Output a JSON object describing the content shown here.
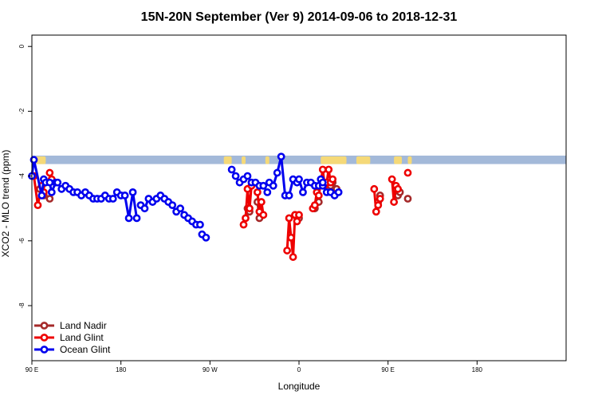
{
  "chart_data": {
    "type": "line",
    "title": "15N-20N September (Ver 9)   2014-09-06 to 2018-12-31",
    "xlabel": "Longitude",
    "ylabel": "XCO2 - MLO trend (ppm)",
    "xlim": [
      -90,
      180
    ],
    "ylim": [
      -9.7,
      0.35
    ],
    "xticks": [
      {
        "value": -90,
        "label": "90 E"
      },
      {
        "value": -45,
        "label": "180"
      },
      {
        "value": 0,
        "label": "90 W"
      },
      {
        "value": 45,
        "label": "0"
      },
      {
        "value": 90,
        "label": "90 E"
      },
      {
        "value": 135,
        "label": "180"
      }
    ],
    "yticks": [
      {
        "value": 0,
        "label": "0"
      },
      {
        "value": -2,
        "label": "-2"
      },
      {
        "value": -4,
        "label": "-4"
      },
      {
        "value": -6,
        "label": "-6"
      },
      {
        "value": -8,
        "label": "-8"
      }
    ],
    "map_strip": {
      "y_range": [
        -3.63,
        -3.37
      ],
      "ocean_color": "#A3B9D9",
      "land_color": "#F5D978",
      "land_segments": [
        [
          -88,
          -83
        ],
        [
          7,
          11
        ],
        [
          16,
          18
        ],
        [
          28,
          30
        ],
        [
          56,
          69
        ],
        [
          74,
          81
        ],
        [
          93,
          97
        ],
        [
          100,
          102
        ]
      ]
    },
    "legend_position": "bottom-left",
    "series": [
      {
        "name": "Land Nadir",
        "color": "#A52A2A",
        "segments": [
          [
            [
              -86,
              -4.4
            ],
            [
              -84,
              -4.6
            ],
            [
              -81,
              -4.7
            ]
          ],
          [
            [
              19,
              -5.0
            ],
            [
              20,
              -5.1
            ]
          ],
          [
            [
              24,
              -4.8
            ],
            [
              25,
              -5.3
            ]
          ],
          [
            [
              43,
              -5.2
            ],
            [
              45,
              -5.3
            ]
          ],
          [
            [
              53,
              -5.0
            ],
            [
              55,
              -4.8
            ]
          ],
          [
            [
              59,
              -4.2
            ],
            [
              61,
              -4.3
            ],
            [
              62,
              -4.2
            ],
            [
              64,
              -4.4
            ]
          ],
          [
            [
              85,
              -4.8
            ],
            [
              86,
              -4.6
            ]
          ],
          [
            [
              95,
              -4.6
            ],
            [
              96,
              -4.5
            ]
          ],
          [
            [
              100,
              -4.7
            ]
          ]
        ]
      },
      {
        "name": "Land Glint",
        "color": "#EE0000",
        "segments": [
          [
            [
              -89,
              -4.0
            ],
            [
              -87,
              -4.9
            ],
            [
              -85,
              -4.3
            ],
            [
              -84,
              -4.5
            ]
          ],
          [
            [
              -81,
              -3.9
            ],
            [
              -80,
              -4.1
            ]
          ],
          [
            [
              17,
              -5.5
            ],
            [
              18,
              -5.3
            ],
            [
              19,
              -4.4
            ],
            [
              20,
              -5.0
            ],
            [
              21,
              -4.3
            ]
          ],
          [
            [
              24,
              -4.5
            ],
            [
              25,
              -5.1
            ],
            [
              26,
              -4.8
            ],
            [
              27,
              -5.2
            ]
          ],
          [
            [
              39,
              -6.3
            ],
            [
              40,
              -5.3
            ],
            [
              41,
              -5.9
            ],
            [
              42,
              -6.5
            ],
            [
              43,
              -5.2
            ],
            [
              44,
              -5.4
            ],
            [
              45,
              -5.2
            ]
          ],
          [
            [
              52,
              -5.0
            ],
            [
              53,
              -4.9
            ],
            [
              54,
              -4.5
            ],
            [
              55,
              -4.6
            ],
            [
              57,
              -3.8
            ],
            [
              58,
              -4.3
            ],
            [
              59,
              -4.2
            ],
            [
              60,
              -3.8
            ],
            [
              61,
              -4.2
            ],
            [
              62,
              -4.1
            ]
          ],
          [
            [
              83,
              -4.4
            ],
            [
              84,
              -5.1
            ],
            [
              85,
              -4.9
            ],
            [
              86,
              -4.7
            ]
          ],
          [
            [
              92,
              -4.1
            ],
            [
              93,
              -4.8
            ],
            [
              94,
              -4.3
            ],
            [
              95,
              -4.4
            ]
          ],
          [
            [
              100,
              -3.9
            ]
          ]
        ]
      },
      {
        "name": "Ocean Glint",
        "color": "#0000EE",
        "segments": [
          [
            [
              -90,
              -4.0
            ],
            [
              -89,
              -3.5
            ],
            [
              -85,
              -4.6
            ],
            [
              -84,
              -4.1
            ],
            [
              -83,
              -4.2
            ],
            [
              -81,
              -4.2
            ],
            [
              -80,
              -4.5
            ],
            [
              -78,
              -4.2
            ],
            [
              -77,
              -4.2
            ],
            [
              -75,
              -4.4
            ],
            [
              -73,
              -4.3
            ],
            [
              -71,
              -4.4
            ],
            [
              -69,
              -4.5
            ],
            [
              -67,
              -4.5
            ],
            [
              -65,
              -4.6
            ],
            [
              -63,
              -4.5
            ],
            [
              -61,
              -4.6
            ],
            [
              -59,
              -4.7
            ],
            [
              -57,
              -4.7
            ],
            [
              -55,
              -4.7
            ],
            [
              -53,
              -4.6
            ],
            [
              -51,
              -4.7
            ],
            [
              -49,
              -4.7
            ],
            [
              -47,
              -4.5
            ],
            [
              -45,
              -4.6
            ],
            [
              -43,
              -4.6
            ],
            [
              -41,
              -5.3
            ],
            [
              -39,
              -4.5
            ],
            [
              -37,
              -5.3
            ]
          ],
          [
            [
              -35,
              -4.9
            ],
            [
              -33,
              -5.0
            ],
            [
              -31,
              -4.7
            ],
            [
              -29,
              -4.8
            ],
            [
              -27,
              -4.7
            ],
            [
              -25,
              -4.6
            ],
            [
              -23,
              -4.7
            ],
            [
              -21,
              -4.8
            ],
            [
              -19,
              -4.9
            ],
            [
              -17,
              -5.1
            ],
            [
              -15,
              -5.0
            ],
            [
              -13,
              -5.2
            ],
            [
              -11,
              -5.3
            ],
            [
              -9,
              -5.4
            ],
            [
              -7,
              -5.5
            ],
            [
              -5,
              -5.5
            ]
          ],
          [
            [
              -4,
              -5.8
            ],
            [
              -2,
              -5.9
            ]
          ],
          [
            [
              11,
              -3.8
            ],
            [
              13,
              -4.0
            ],
            [
              15,
              -4.2
            ],
            [
              17,
              -4.1
            ],
            [
              19,
              -4.0
            ],
            [
              21,
              -4.2
            ],
            [
              23,
              -4.2
            ],
            [
              25,
              -4.3
            ],
            [
              27,
              -4.3
            ],
            [
              29,
              -4.5
            ]
          ],
          [
            [
              30,
              -4.2
            ],
            [
              32,
              -4.3
            ],
            [
              34,
              -3.9
            ],
            [
              36,
              -3.4
            ],
            [
              38,
              -4.6
            ],
            [
              40,
              -4.6
            ],
            [
              42,
              -4.1
            ],
            [
              44,
              -4.2
            ]
          ],
          [
            [
              45,
              -4.1
            ],
            [
              47,
              -4.5
            ],
            [
              49,
              -4.2
            ],
            [
              51,
              -4.2
            ],
            [
              53,
              -4.3
            ],
            [
              55,
              -4.3
            ],
            [
              57,
              -4.3
            ],
            [
              59,
              -4.5
            ],
            [
              61,
              -4.5
            ],
            [
              63,
              -4.6
            ],
            [
              65,
              -4.5
            ]
          ],
          [
            [
              56,
              -4.1
            ],
            [
              57,
              -4.2
            ]
          ]
        ]
      }
    ]
  }
}
